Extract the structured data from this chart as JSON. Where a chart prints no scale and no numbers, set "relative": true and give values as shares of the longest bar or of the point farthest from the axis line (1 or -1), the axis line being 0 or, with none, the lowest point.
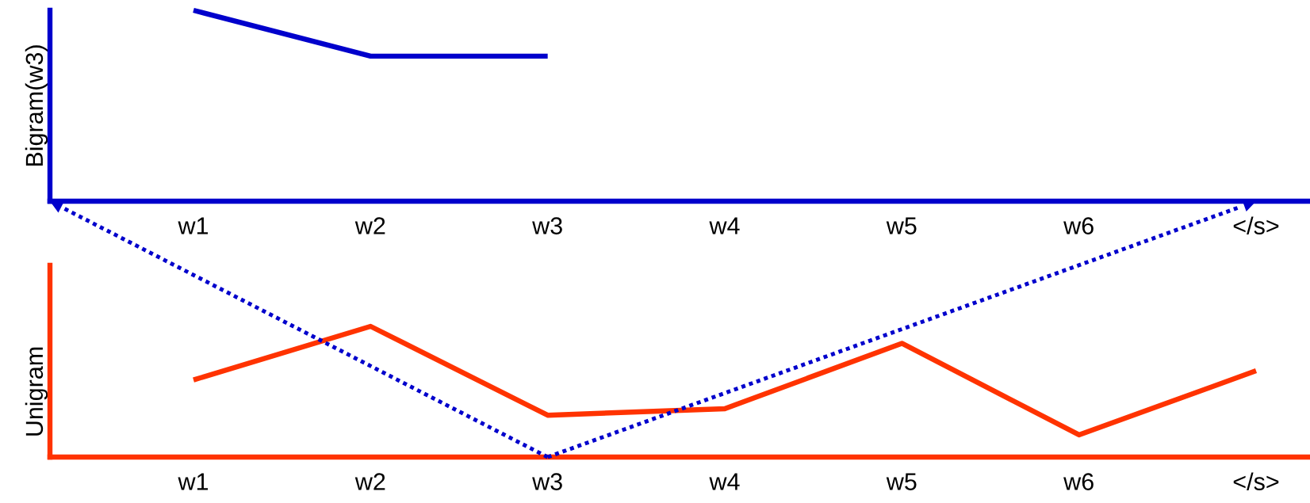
{
  "chart_data": [
    {
      "type": "line",
      "ylabel": "Bigram(w3)",
      "relative": true,
      "tick_labels": "x",
      "grid": false,
      "legend": false,
      "categories": [
        "w1",
        "w2",
        "w3",
        "w4",
        "w5",
        "w6",
        "</s>"
      ],
      "series": [
        {
          "color": "#0000cc",
          "values": [
            1,
            0.76,
            0.76,
            null,
            null,
            null,
            null
          ]
        }
      ]
    },
    {
      "type": "line",
      "ylabel": "Unigram",
      "relative": true,
      "tick_labels": "x",
      "grid": false,
      "legend": false,
      "categories": [
        "w1",
        "w2",
        "w3",
        "w4",
        "w5",
        "w6",
        "</s>"
      ],
      "series": [
        {
          "color": "#ff3300",
          "values": [
            0.59,
            1,
            0.32,
            0.37,
            0.87,
            0.17,
            0.66
          ]
        }
      ]
    }
  ]
}
